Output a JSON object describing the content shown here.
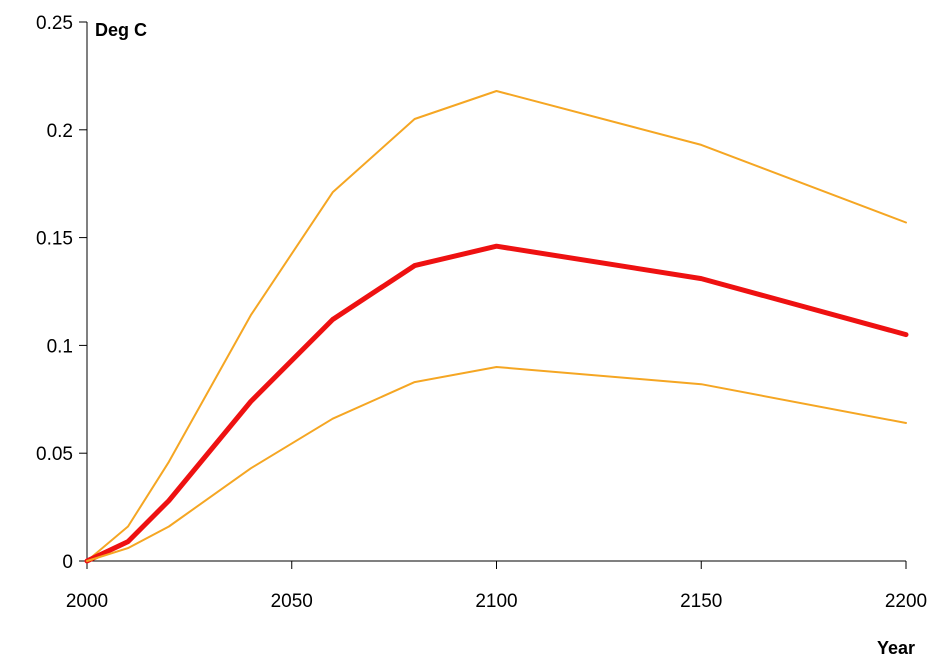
{
  "chart_data": {
    "type": "line",
    "title": "",
    "xlabel": "Year",
    "ylabel": "Deg C",
    "xlim": [
      2000,
      2200
    ],
    "ylim": [
      0,
      0.25
    ],
    "x_ticks": [
      "2000",
      "2050",
      "2100",
      "2150",
      "2200"
    ],
    "y_ticks": [
      "0",
      "0.05",
      "0.1",
      "0.15",
      "0.2",
      "0.25"
    ],
    "grid": false,
    "legend": "none",
    "x": [
      2000,
      2010,
      2020,
      2040,
      2060,
      2080,
      2100,
      2150,
      2200
    ],
    "series": [
      {
        "values": [
          0,
          0.016,
          0.046,
          0.114,
          0.171,
          0.205,
          0.218,
          0.193,
          0.157
        ],
        "color": "#f5a623",
        "width": 2
      },
      {
        "values": [
          0,
          0.009,
          0.028,
          0.074,
          0.112,
          0.137,
          0.146,
          0.131,
          0.105
        ],
        "color": "#ee1111",
        "width": 5
      },
      {
        "values": [
          0,
          0.006,
          0.016,
          0.043,
          0.066,
          0.083,
          0.09,
          0.082,
          0.064
        ],
        "color": "#f5a623",
        "width": 2
      }
    ]
  }
}
